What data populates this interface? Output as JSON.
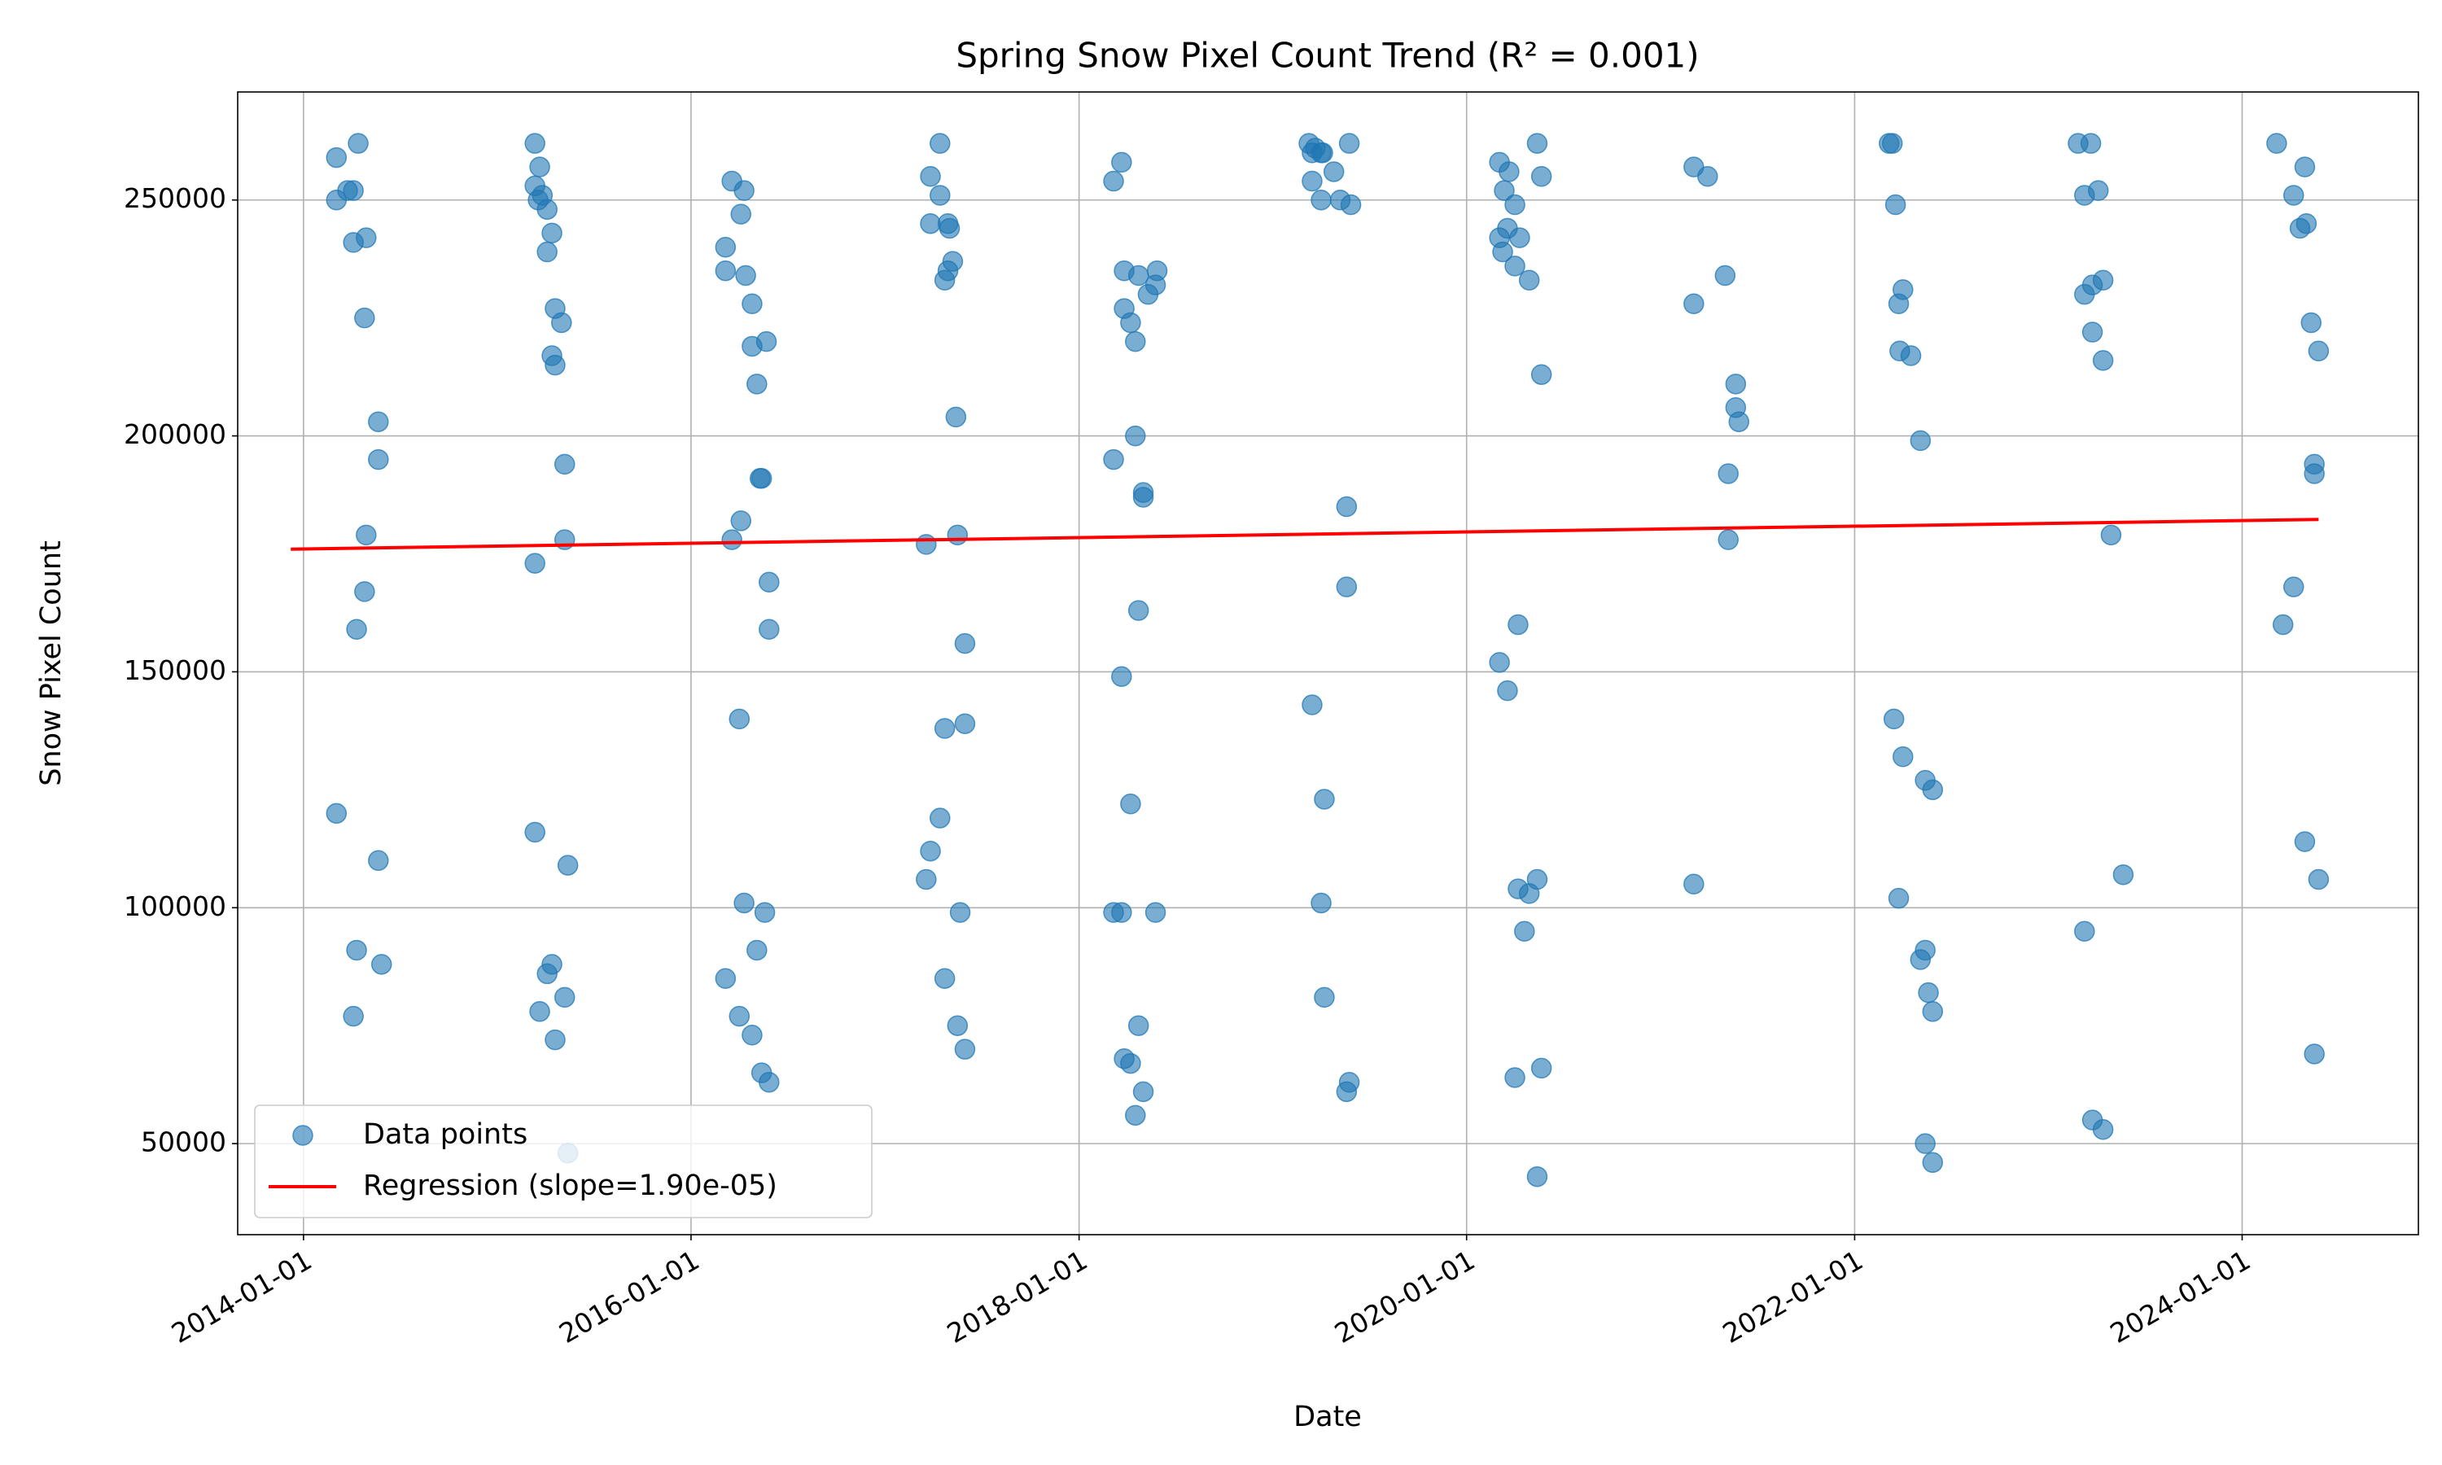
{
  "chart_data": {
    "type": "scatter",
    "title": "Spring Snow Pixel Count Trend (R² = 0.001)",
    "xlabel": "Date",
    "ylabel": "Snow Pixel Count",
    "xlim": [
      "2013-08-30",
      "2024-11-28"
    ],
    "xticks": [
      "2014-01-01",
      "2016-01-01",
      "2018-01-01",
      "2020-01-01",
      "2022-01-01",
      "2024-01-01"
    ],
    "ylim": [
      30700,
      272900
    ],
    "yticks": [
      50000,
      100000,
      150000,
      200000,
      250000
    ],
    "grid": true,
    "legend": "lower left",
    "series": [
      {
        "name": "Data points",
        "color": "#1f77b4",
        "x": [
          "2014-03-04",
          "2014-04-14",
          "2014-03-25",
          "2014-04-05",
          "2014-03-04",
          "2014-04-05",
          "2014-04-29",
          "2014-04-26",
          "2014-05-22",
          "2014-05-22",
          "2014-04-29",
          "2014-04-26",
          "2014-04-11",
          "2014-03-04",
          "2014-05-22",
          "2014-04-11",
          "2014-05-28",
          "2014-04-05",
          "2015-03-13",
          "2015-03-22",
          "2015-03-13",
          "2015-03-27",
          "2015-03-19",
          "2015-04-05",
          "2015-04-14",
          "2015-04-05",
          "2015-04-20",
          "2015-05-02",
          "2015-04-14",
          "2015-04-20",
          "2015-05-08",
          "2015-05-08",
          "2015-03-13",
          "2015-03-13",
          "2015-05-14",
          "2015-04-14",
          "2015-04-05",
          "2015-03-22",
          "2015-05-08",
          "2015-04-20",
          "2015-05-14",
          "2016-03-18",
          "2016-04-10",
          "2016-04-04",
          "2016-03-06",
          "2016-03-06",
          "2016-04-13",
          "2016-04-25",
          "2016-05-22",
          "2016-04-25",
          "2016-05-04",
          "2016-05-13",
          "2016-05-10",
          "2016-04-04",
          "2016-03-18",
          "2016-05-27",
          "2016-05-27",
          "2016-04-01",
          "2016-04-10",
          "2016-05-19",
          "2016-05-04",
          "2016-03-06",
          "2016-04-01",
          "2016-04-25",
          "2016-05-13",
          "2016-05-27",
          "2017-04-14",
          "2017-03-27",
          "2017-04-14",
          "2017-03-27",
          "2017-04-29",
          "2017-05-02",
          "2017-05-08",
          "2017-04-29",
          "2017-04-23",
          "2017-05-14",
          "2017-03-19",
          "2017-05-17",
          "2017-05-31",
          "2017-05-31",
          "2017-04-23",
          "2017-04-14",
          "2017-03-27",
          "2017-03-19",
          "2017-05-22",
          "2017-04-23",
          "2017-05-17",
          "2017-05-31",
          "2018-03-22",
          "2018-03-07",
          "2018-03-27",
          "2018-04-23",
          "2018-05-28",
          "2018-05-25",
          "2018-05-11",
          "2018-03-27",
          "2018-04-08",
          "2018-04-17",
          "2018-04-17",
          "2018-03-07",
          "2018-05-02",
          "2018-05-02",
          "2018-04-23",
          "2018-03-22",
          "2018-04-08",
          "2018-03-07",
          "2018-03-22",
          "2018-05-25",
          "2018-04-23",
          "2018-03-27",
          "2018-04-08",
          "2018-05-02",
          "2018-04-17",
          "2019-03-10",
          "2019-03-22",
          "2019-04-05",
          "2019-03-16",
          "2019-04-02",
          "2019-05-25",
          "2019-04-26",
          "2019-03-16",
          "2019-04-02",
          "2019-05-08",
          "2019-05-28",
          "2019-05-20",
          "2019-05-20",
          "2019-03-16",
          "2019-04-08",
          "2019-04-02",
          "2019-04-08",
          "2019-05-25",
          "2019-05-20",
          "2020-03-03",
          "2020-05-13",
          "2020-03-21",
          "2020-05-21",
          "2020-03-12",
          "2020-04-01",
          "2020-03-18",
          "2020-03-03",
          "2020-04-10",
          "2020-03-09",
          "2020-04-01",
          "2020-04-28",
          "2020-05-21",
          "2020-04-07",
          "2020-03-03",
          "2020-03-18",
          "2020-04-07",
          "2020-04-28",
          "2020-05-13",
          "2020-04-19",
          "2020-05-21",
          "2020-04-01",
          "2020-05-13",
          "2021-03-04",
          "2021-03-30",
          "2021-05-02",
          "2021-03-04",
          "2021-05-22",
          "2021-05-22",
          "2021-05-28",
          "2021-05-08",
          "2021-05-08",
          "2021-03-04",
          "2022-03-07",
          "2022-03-13",
          "2022-03-19",
          "2022-04-02",
          "2022-03-25",
          "2022-03-27",
          "2022-04-17",
          "2022-05-05",
          "2022-03-16",
          "2022-04-02",
          "2022-05-14",
          "2022-05-28",
          "2022-03-25",
          "2022-05-14",
          "2022-05-05",
          "2022-05-20",
          "2022-05-28",
          "2022-05-14",
          "2022-05-28",
          "2023-02-26",
          "2023-03-22",
          "2023-03-10",
          "2023-04-05",
          "2023-04-14",
          "2023-03-25",
          "2023-03-10",
          "2023-03-25",
          "2023-04-14",
          "2023-04-29",
          "2023-05-22",
          "2023-03-10",
          "2023-03-25",
          "2023-04-14",
          "2024-03-06",
          "2024-04-28",
          "2024-04-07",
          "2024-05-01",
          "2024-04-19",
          "2024-05-10",
          "2024-05-24",
          "2024-05-16",
          "2024-05-16",
          "2024-04-07",
          "2024-03-18",
          "2024-04-28",
          "2024-05-24",
          "2024-05-16"
        ],
        "values": [
          259000,
          262000,
          252000,
          252000,
          250000,
          241000,
          242000,
          225000,
          203000,
          195000,
          179000,
          167000,
          159000,
          120000,
          110000,
          91000,
          88000,
          77000,
          262000,
          257000,
          253000,
          251000,
          250000,
          248000,
          243000,
          239000,
          227000,
          224000,
          217000,
          215000,
          194000,
          178000,
          173000,
          116000,
          109000,
          88000,
          86000,
          78000,
          81000,
          72000,
          48000,
          254000,
          252000,
          247000,
          240000,
          235000,
          234000,
          228000,
          220000,
          219000,
          211000,
          191000,
          191000,
          182000,
          178000,
          169000,
          159000,
          140000,
          101000,
          99000,
          91000,
          85000,
          77000,
          73000,
          65000,
          63000,
          262000,
          255000,
          251000,
          245000,
          245000,
          244000,
          237000,
          235000,
          233000,
          204000,
          177000,
          179000,
          156000,
          139000,
          138000,
          119000,
          112000,
          106000,
          99000,
          85000,
          75000,
          70000,
          258000,
          254000,
          235000,
          234000,
          235000,
          232000,
          230000,
          227000,
          224000,
          220000,
          200000,
          195000,
          188000,
          187000,
          163000,
          149000,
          122000,
          99000,
          99000,
          99000,
          75000,
          68000,
          67000,
          61000,
          56000,
          262000,
          261000,
          260000,
          260000,
          260000,
          262000,
          256000,
          254000,
          250000,
          250000,
          249000,
          185000,
          168000,
          143000,
          123000,
          101000,
          81000,
          63000,
          61000,
          258000,
          262000,
          256000,
          255000,
          252000,
          249000,
          244000,
          242000,
          242000,
          239000,
          236000,
          233000,
          213000,
          160000,
          152000,
          146000,
          104000,
          103000,
          106000,
          95000,
          66000,
          64000,
          43000,
          257000,
          255000,
          234000,
          228000,
          211000,
          206000,
          203000,
          192000,
          178000,
          105000,
          262000,
          262000,
          249000,
          231000,
          228000,
          218000,
          217000,
          199000,
          140000,
          132000,
          127000,
          125000,
          102000,
          91000,
          89000,
          82000,
          78000,
          50000,
          46000,
          262000,
          262000,
          251000,
          252000,
          233000,
          232000,
          230000,
          222000,
          216000,
          179000,
          107000,
          95000,
          55000,
          53000,
          262000,
          257000,
          251000,
          245000,
          244000,
          224000,
          218000,
          194000,
          192000,
          168000,
          160000,
          114000,
          106000,
          69000
        ]
      },
      {
        "name": "Regression (slope=1.90e-05)",
        "color": "#ff0000",
        "type": "line",
        "x": [
          "2013-12-08",
          "2024-05-24"
        ],
        "values": [
          176000,
          182300
        ]
      }
    ]
  }
}
